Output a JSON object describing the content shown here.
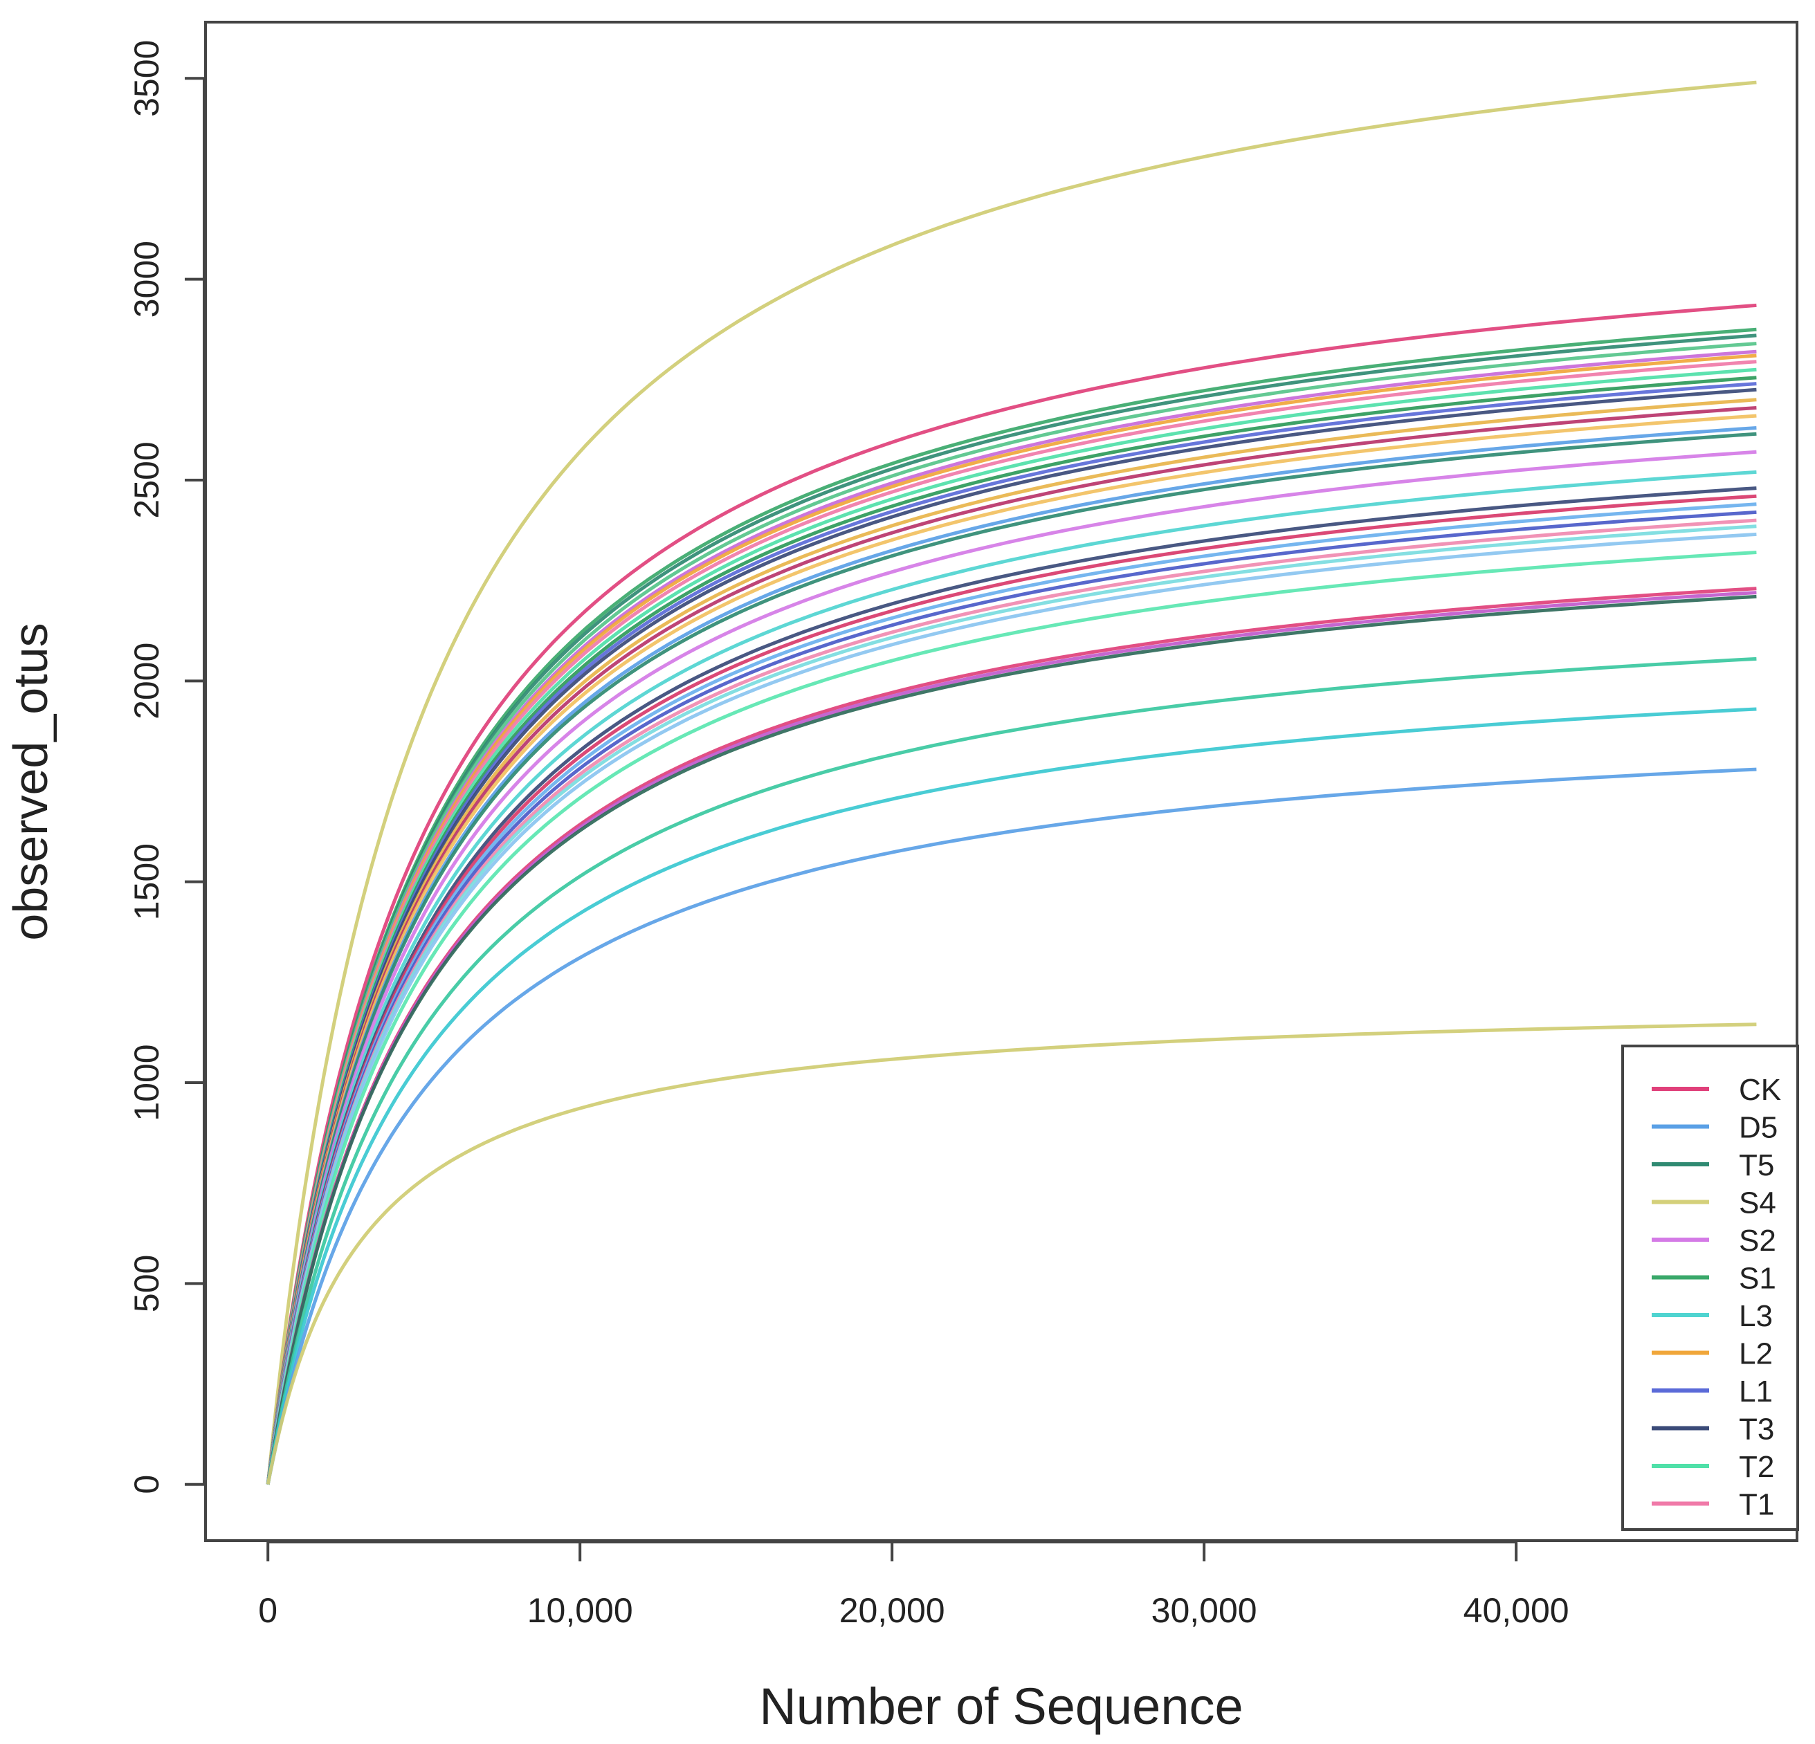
{
  "chart_data": {
    "type": "line",
    "title": "",
    "xlabel": "Number of Sequence",
    "ylabel": "observed_otus",
    "xlim": [
      -2000,
      49000
    ],
    "ylim": [
      -140,
      3640
    ],
    "x_max_depth": 47700,
    "xticks": [
      {
        "value": 0,
        "label": "0"
      },
      {
        "value": 10000,
        "label": "10,000"
      },
      {
        "value": 20000,
        "label": "20,000"
      },
      {
        "value": 30000,
        "label": "30,000"
      },
      {
        "value": 40000,
        "label": "40,000"
      }
    ],
    "yticks": [
      {
        "value": 0,
        "label": "0"
      },
      {
        "value": 500,
        "label": "500"
      },
      {
        "value": 1000,
        "label": "1000"
      },
      {
        "value": 1500,
        "label": "1500"
      },
      {
        "value": 2000,
        "label": "2000"
      },
      {
        "value": 2500,
        "label": "2500"
      },
      {
        "value": 3000,
        "label": "3000"
      },
      {
        "value": 3500,
        "label": "3500"
      }
    ],
    "legend": {
      "position": "bottom-right",
      "entries": [
        {
          "name": "CK",
          "color": "#e0407a"
        },
        {
          "name": "D5",
          "color": "#5aa0e6"
        },
        {
          "name": "T5",
          "color": "#2f8a72"
        },
        {
          "name": "S4",
          "color": "#d4d07a"
        },
        {
          "name": "S2",
          "color": "#d47ae6"
        },
        {
          "name": "S1",
          "color": "#3aa86a"
        },
        {
          "name": "L3",
          "color": "#4fd4d0"
        },
        {
          "name": "L2",
          "color": "#f0a63a"
        },
        {
          "name": "L1",
          "color": "#5a6ad8"
        },
        {
          "name": "T3",
          "color": "#3a4a78"
        },
        {
          "name": "T2",
          "color": "#4fe0a8"
        },
        {
          "name": "T1",
          "color": "#f07aa8"
        }
      ]
    },
    "series": [
      {
        "name": "S4",
        "color": "#cfcc72",
        "k": 5000,
        "values": [
          [
            0,
            0
          ],
          [
            47700,
            3490
          ]
        ]
      },
      {
        "name": "CK",
        "color": "#e0407a",
        "k": 5000,
        "values": [
          [
            0,
            0
          ],
          [
            47700,
            2935
          ]
        ]
      },
      {
        "name": "S1",
        "color": "#3aa86a",
        "k": 5000,
        "values": [
          [
            0,
            0
          ],
          [
            47700,
            2875
          ]
        ]
      },
      {
        "name": "T5",
        "color": "#2f8a72",
        "k": 5000,
        "values": [
          [
            0,
            0
          ],
          [
            47700,
            2860
          ]
        ]
      },
      {
        "name": "S1",
        "color": "#56c48a",
        "k": 5000,
        "values": [
          [
            0,
            0
          ],
          [
            47700,
            2840
          ]
        ]
      },
      {
        "name": "S2",
        "color": "#c86ad8",
        "k": 5000,
        "values": [
          [
            0,
            0
          ],
          [
            47700,
            2820
          ]
        ]
      },
      {
        "name": "L2",
        "color": "#f0a63a",
        "k": 5000,
        "values": [
          [
            0,
            0
          ],
          [
            47700,
            2810
          ]
        ]
      },
      {
        "name": "T1",
        "color": "#f07aa8",
        "k": 5000,
        "values": [
          [
            0,
            0
          ],
          [
            47700,
            2795
          ]
        ]
      },
      {
        "name": "T2",
        "color": "#4fe0a8",
        "k": 5000,
        "values": [
          [
            0,
            0
          ],
          [
            47700,
            2775
          ]
        ]
      },
      {
        "name": "S1",
        "color": "#2e9a5a",
        "k": 5000,
        "values": [
          [
            0,
            0
          ],
          [
            47700,
            2755
          ]
        ]
      },
      {
        "name": "L1",
        "color": "#5a6ad8",
        "k": 5000,
        "values": [
          [
            0,
            0
          ],
          [
            47700,
            2740
          ]
        ]
      },
      {
        "name": "T3",
        "color": "#3a4a78",
        "k": 5000,
        "values": [
          [
            0,
            0
          ],
          [
            47700,
            2725
          ]
        ]
      },
      {
        "name": "L2",
        "color": "#e8b44a",
        "k": 5000,
        "values": [
          [
            0,
            0
          ],
          [
            47700,
            2700
          ]
        ]
      },
      {
        "name": "CK",
        "color": "#b8346a",
        "k": 5000,
        "values": [
          [
            0,
            0
          ],
          [
            47700,
            2680
          ]
        ]
      },
      {
        "name": "L2",
        "color": "#f2c060",
        "k": 5000,
        "values": [
          [
            0,
            0
          ],
          [
            47700,
            2660
          ]
        ]
      },
      {
        "name": "D5",
        "color": "#5aa0e6",
        "k": 5000,
        "values": [
          [
            0,
            0
          ],
          [
            47700,
            2630
          ]
        ]
      },
      {
        "name": "T5",
        "color": "#2f8a72",
        "k": 5000,
        "values": [
          [
            0,
            0
          ],
          [
            47700,
            2615
          ]
        ]
      },
      {
        "name": "S2",
        "color": "#d47ae6",
        "k": 5000,
        "values": [
          [
            0,
            0
          ],
          [
            47700,
            2570
          ]
        ]
      },
      {
        "name": "L3",
        "color": "#4fd4d0",
        "k": 5000,
        "values": [
          [
            0,
            0
          ],
          [
            47700,
            2520
          ]
        ]
      },
      {
        "name": "T3",
        "color": "#3a4a78",
        "k": 5000,
        "values": [
          [
            0,
            0
          ],
          [
            47700,
            2480
          ]
        ]
      },
      {
        "name": "CK",
        "color": "#d83a6a",
        "k": 5000,
        "values": [
          [
            0,
            0
          ],
          [
            47700,
            2460
          ]
        ]
      },
      {
        "name": "D5",
        "color": "#6ab0ee",
        "k": 5000,
        "values": [
          [
            0,
            0
          ],
          [
            47700,
            2440
          ]
        ]
      },
      {
        "name": "L1",
        "color": "#4a5ac8",
        "k": 5000,
        "values": [
          [
            0,
            0
          ],
          [
            47700,
            2420
          ]
        ]
      },
      {
        "name": "T1",
        "color": "#f08ab0",
        "k": 5000,
        "values": [
          [
            0,
            0
          ],
          [
            47700,
            2400
          ]
        ]
      },
      {
        "name": "L3",
        "color": "#7adce0",
        "k": 5000,
        "values": [
          [
            0,
            0
          ],
          [
            47700,
            2385
          ]
        ]
      },
      {
        "name": "D5",
        "color": "#8ac4f0",
        "k": 5000,
        "values": [
          [
            0,
            0
          ],
          [
            47700,
            2365
          ]
        ]
      },
      {
        "name": "T2",
        "color": "#5ae6b0",
        "k": 5000,
        "values": [
          [
            0,
            0
          ],
          [
            47700,
            2320
          ]
        ]
      },
      {
        "name": "CK",
        "color": "#e0407a",
        "k": 5000,
        "values": [
          [
            0,
            0
          ],
          [
            47700,
            2230
          ]
        ]
      },
      {
        "name": "S2",
        "color": "#c05acc",
        "k": 5000,
        "values": [
          [
            0,
            0
          ],
          [
            47700,
            2220
          ]
        ]
      },
      {
        "name": "T5",
        "color": "#2f6a5a",
        "k": 5000,
        "values": [
          [
            0,
            0
          ],
          [
            47700,
            2210
          ]
        ]
      },
      {
        "name": "T2",
        "color": "#3ac8a0",
        "k": 5000,
        "values": [
          [
            0,
            0
          ],
          [
            47700,
            2055
          ]
        ]
      },
      {
        "name": "L3",
        "color": "#3ac8d0",
        "k": 5000,
        "values": [
          [
            0,
            0
          ],
          [
            47700,
            1930
          ]
        ]
      },
      {
        "name": "D5",
        "color": "#5aa0e6",
        "k": 5000,
        "values": [
          [
            0,
            0
          ],
          [
            47700,
            1780
          ]
        ]
      },
      {
        "name": "S4",
        "color": "#cfcc72",
        "k": 3000,
        "values": [
          [
            0,
            0
          ],
          [
            47700,
            1145
          ]
        ]
      }
    ]
  }
}
